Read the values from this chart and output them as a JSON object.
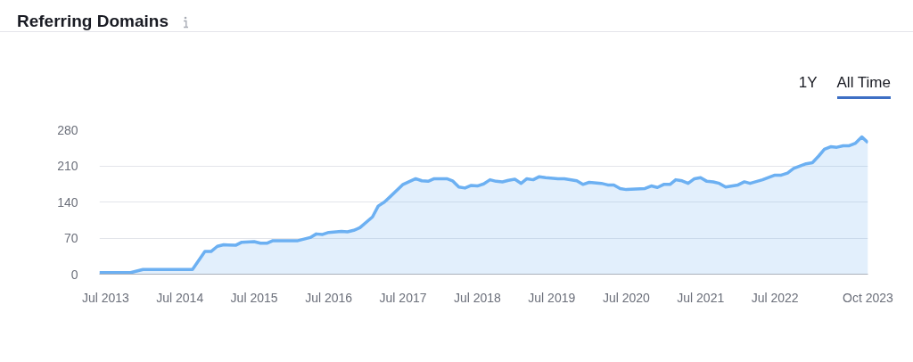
{
  "chart_data": {
    "type": "area",
    "title": "Referring Domains",
    "annotations": [
      "1Y",
      "All Time"
    ],
    "x": [
      "2013-06",
      "2013-11",
      "2014-01",
      "2014-09",
      "2014-11",
      "2014-12",
      "2015-01",
      "2015-02",
      "2015-04",
      "2015-05",
      "2015-07",
      "2015-08",
      "2015-09",
      "2015-10",
      "2016-02",
      "2016-04",
      "2016-05",
      "2016-06",
      "2016-07",
      "2016-09",
      "2016-10",
      "2016-11",
      "2016-12",
      "2017-02",
      "2017-03",
      "2017-04",
      "2017-05",
      "2017-07",
      "2017-09",
      "2017-10",
      "2017-11",
      "2017-12",
      "2018-02",
      "2018-03",
      "2018-04",
      "2018-05",
      "2018-06",
      "2018-07",
      "2018-08",
      "2018-09",
      "2018-10",
      "2018-11",
      "2018-12",
      "2019-01",
      "2019-02",
      "2019-03",
      "2019-04",
      "2019-05",
      "2019-06",
      "2019-08",
      "2019-09",
      "2019-11",
      "2019-12",
      "2020-01",
      "2020-03",
      "2020-04",
      "2020-05",
      "2020-06",
      "2020-07",
      "2020-10",
      "2020-11",
      "2020-12",
      "2021-01",
      "2021-02",
      "2021-03",
      "2021-04",
      "2021-05",
      "2021-06",
      "2021-07",
      "2021-08",
      "2021-09",
      "2021-10",
      "2021-11",
      "2022-01",
      "2022-02",
      "2022-03",
      "2022-05",
      "2022-07",
      "2022-08",
      "2022-09",
      "2022-10",
      "2022-12",
      "2023-01",
      "2023-02",
      "2023-03",
      "2023-04",
      "2023-05",
      "2023-06",
      "2023-07",
      "2023-08",
      "2023-09",
      "2023-10"
    ],
    "series": [
      {
        "color": "#6cb0f2",
        "values": [
          3,
          3,
          9,
          9,
          44,
          44,
          54,
          57,
          56,
          62,
          63,
          60,
          60,
          65,
          65,
          71,
          78,
          77,
          81,
          83,
          82,
          85,
          90,
          111,
          132,
          140,
          151,
          174,
          185,
          181,
          180,
          185,
          185,
          181,
          169,
          167,
          172,
          171,
          175,
          183,
          180,
          179,
          182,
          184,
          176,
          185,
          183,
          189,
          187,
          185,
          185,
          181,
          174,
          178,
          176,
          173,
          173,
          166,
          164,
          166,
          171,
          168,
          174,
          174,
          183,
          181,
          176,
          185,
          187,
          180,
          179,
          176,
          169,
          173,
          179,
          176,
          183,
          192,
          192,
          196,
          205,
          214,
          216,
          229,
          242,
          247,
          246,
          249,
          249,
          254,
          266,
          255
        ]
      }
    ],
    "xlim": [
      "2013-06",
      "2023-10"
    ],
    "xticks": [
      {
        "value": "2013-07",
        "label": "Jul 2013"
      },
      {
        "value": "2014-07",
        "label": "Jul 2014"
      },
      {
        "value": "2015-07",
        "label": "Jul 2015"
      },
      {
        "value": "2016-07",
        "label": "Jul 2016"
      },
      {
        "value": "2017-07",
        "label": "Jul 2017"
      },
      {
        "value": "2018-07",
        "label": "Jul 2018"
      },
      {
        "value": "2019-07",
        "label": "Jul 2019"
      },
      {
        "value": "2020-07",
        "label": "Jul 2020"
      },
      {
        "value": "2021-07",
        "label": "Jul 2021"
      },
      {
        "value": "2022-07",
        "label": "Jul 2022"
      },
      {
        "value": "2023-10",
        "label": "Oct 2023"
      }
    ],
    "ylim": [
      0,
      280
    ],
    "yticks": [
      0,
      70,
      140,
      210,
      280
    ],
    "grid": "y"
  }
}
